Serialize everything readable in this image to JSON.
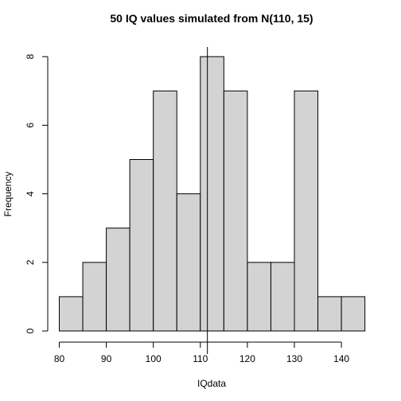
{
  "chart_data": {
    "type": "histogram",
    "title": "50 IQ values simulated from N(110, 15)",
    "xlabel": "IQdata",
    "ylabel": "Frequency",
    "bin_edges": [
      80,
      85,
      90,
      95,
      100,
      105,
      110,
      115,
      120,
      125,
      130,
      135,
      140,
      145
    ],
    "counts": [
      1,
      2,
      3,
      5,
      7,
      4,
      8,
      7,
      2,
      2,
      7,
      1,
      1
    ],
    "x_ticks": [
      80,
      90,
      100,
      110,
      120,
      130,
      140
    ],
    "y_ticks": [
      0,
      2,
      4,
      6,
      8
    ],
    "vertical_line_x": 111.5,
    "bar_fill": "#d3d3d3",
    "bar_stroke": "#000000",
    "grid": false
  }
}
